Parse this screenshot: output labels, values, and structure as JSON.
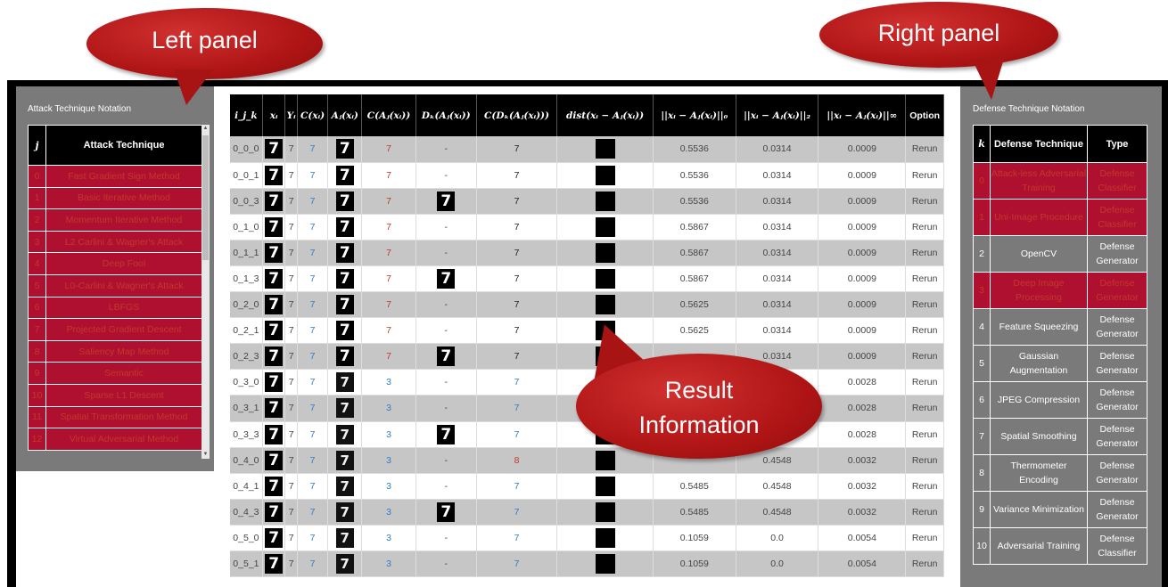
{
  "callouts": {
    "left": "Left panel",
    "right": "Right panel",
    "result_line1": "Result",
    "result_line2": "Information"
  },
  "left_panel": {
    "title": "Attack Technique Notation",
    "headers": [
      "j",
      "Attack Technique"
    ],
    "rows": [
      {
        "j": "0",
        "name": "Fast Gradient Sign Method"
      },
      {
        "j": "1",
        "name": "Basic Iterative Method"
      },
      {
        "j": "2",
        "name": "Momentum Iterative Method"
      },
      {
        "j": "3",
        "name": "L2 Carlini & Wagner's Attack"
      },
      {
        "j": "4",
        "name": "Deep Fool"
      },
      {
        "j": "5",
        "name": "L0-Carlini & Wagner's Attack"
      },
      {
        "j": "6",
        "name": "LBFGS"
      },
      {
        "j": "7",
        "name": "Projected Gradient Descent"
      },
      {
        "j": "8",
        "name": "Saliency Map Method"
      },
      {
        "j": "9",
        "name": "Semantic"
      },
      {
        "j": "10",
        "name": "Sparse L1 Descent"
      },
      {
        "j": "11",
        "name": "Spatial Transformation Method"
      },
      {
        "j": "12",
        "name": "Virtual Adversarial Method"
      }
    ]
  },
  "right_panel": {
    "title": "Defense Technique Notation",
    "headers": [
      "k",
      "Defense Technique",
      "Type"
    ],
    "rows": [
      {
        "k": "0",
        "name": "Attack-less Adversarial Training",
        "type": "Defense Classifier",
        "highlight": true
      },
      {
        "k": "1",
        "name": "Uni-Image Procedure",
        "type": "Defense Classifier",
        "highlight": true
      },
      {
        "k": "2",
        "name": "OpenCV",
        "type": "Defense Generator",
        "highlight": false
      },
      {
        "k": "3",
        "name": "Deep Image Processing",
        "type": "Defense Generator",
        "highlight": true
      },
      {
        "k": "4",
        "name": "Feature Squeezing",
        "type": "Defense Generator",
        "highlight": false
      },
      {
        "k": "5",
        "name": "Gaussian Augmentation",
        "type": "Defense Generator",
        "highlight": false
      },
      {
        "k": "6",
        "name": "JPEG Compression",
        "type": "Defense Generator",
        "highlight": false
      },
      {
        "k": "7",
        "name": "Spatial Smoothing",
        "type": "Defense Generator",
        "highlight": false
      },
      {
        "k": "8",
        "name": "Thermometer Encoding",
        "type": "Defense Generator",
        "highlight": false
      },
      {
        "k": "9",
        "name": "Variance Minimization",
        "type": "Defense Generator",
        "highlight": false
      },
      {
        "k": "10",
        "name": "Adversarial Training",
        "type": "Defense Classifier",
        "highlight": false
      }
    ]
  },
  "results": {
    "headers": [
      "i_j_k",
      "xᵢ",
      "Yᵢ",
      "C(xᵢ)",
      "Aⱼ(xᵢ)",
      "C(Aⱼ(xᵢ))",
      "Dₖ(Aⱼ(xᵢ))",
      "C(Dₖ(Aⱼ(xᵢ)))",
      "dist(xᵢ − Aⱼ(xᵢ))",
      "||xᵢ − Aⱼ(xᵢ)||₀",
      "||xᵢ − Aⱼ(xᵢ)||₂",
      "||xᵢ − Aⱼ(xᵢ)||∞",
      "Option"
    ],
    "digit_glyph": "7",
    "rerun_label": "Rerun",
    "rows": [
      {
        "id": "0_0_0",
        "y": "7",
        "c": "7",
        "ca": "7",
        "ca_color": "red",
        "d": "-",
        "cd": "7",
        "cd_color": "black",
        "l0": "0.5536",
        "l2": "0.0314",
        "linf": "0.0009",
        "adv_noisy": false
      },
      {
        "id": "0_0_1",
        "y": "7",
        "c": "7",
        "ca": "7",
        "ca_color": "red",
        "d": "-",
        "cd": "7",
        "cd_color": "black",
        "l0": "0.5536",
        "l2": "0.0314",
        "linf": "0.0009",
        "adv_noisy": false
      },
      {
        "id": "0_0_3",
        "y": "7",
        "c": "7",
        "ca": "7",
        "ca_color": "red",
        "d": "img",
        "cd": "7",
        "cd_color": "black",
        "l0": "0.5536",
        "l2": "0.0314",
        "linf": "0.0009",
        "adv_noisy": false
      },
      {
        "id": "0_1_0",
        "y": "7",
        "c": "7",
        "ca": "7",
        "ca_color": "red",
        "d": "-",
        "cd": "7",
        "cd_color": "black",
        "l0": "0.5867",
        "l2": "0.0314",
        "linf": "0.0009",
        "adv_noisy": false
      },
      {
        "id": "0_1_1",
        "y": "7",
        "c": "7",
        "ca": "7",
        "ca_color": "red",
        "d": "-",
        "cd": "7",
        "cd_color": "black",
        "l0": "0.5867",
        "l2": "0.0314",
        "linf": "0.0009",
        "adv_noisy": false
      },
      {
        "id": "0_1_3",
        "y": "7",
        "c": "7",
        "ca": "7",
        "ca_color": "red",
        "d": "img",
        "cd": "7",
        "cd_color": "black",
        "l0": "0.5867",
        "l2": "0.0314",
        "linf": "0.0009",
        "adv_noisy": false
      },
      {
        "id": "0_2_0",
        "y": "7",
        "c": "7",
        "ca": "7",
        "ca_color": "red",
        "d": "-",
        "cd": "7",
        "cd_color": "black",
        "l0": "0.5625",
        "l2": "0.0314",
        "linf": "0.0009",
        "adv_noisy": false
      },
      {
        "id": "0_2_1",
        "y": "7",
        "c": "7",
        "ca": "7",
        "ca_color": "red",
        "d": "-",
        "cd": "7",
        "cd_color": "black",
        "l0": "0.5625",
        "l2": "0.0314",
        "linf": "0.0009",
        "adv_noisy": false
      },
      {
        "id": "0_2_3",
        "y": "7",
        "c": "7",
        "ca": "7",
        "ca_color": "red",
        "d": "img",
        "cd": "7",
        "cd_color": "black",
        "l0": "",
        "l2": "0.0314",
        "linf": "0.0009",
        "adv_noisy": false
      },
      {
        "id": "0_3_0",
        "y": "7",
        "c": "7",
        "ca": "3",
        "ca_color": "blue",
        "d": "-",
        "cd": "7",
        "cd_color": "blue",
        "l0": "",
        "l2": "",
        "linf": "0.0028",
        "adv_noisy": true
      },
      {
        "id": "0_3_1",
        "y": "7",
        "c": "7",
        "ca": "3",
        "ca_color": "blue",
        "d": "-",
        "cd": "7",
        "cd_color": "blue",
        "l0": "",
        "l2": "",
        "linf": "0.0028",
        "adv_noisy": true
      },
      {
        "id": "0_3_3",
        "y": "7",
        "c": "7",
        "ca": "3",
        "ca_color": "blue",
        "d": "img",
        "cd": "7",
        "cd_color": "blue",
        "l0": "",
        "l2": "",
        "linf": "0.0028",
        "adv_noisy": true
      },
      {
        "id": "0_4_0",
        "y": "7",
        "c": "7",
        "ca": "3",
        "ca_color": "blue",
        "d": "-",
        "cd": "8",
        "cd_color": "red",
        "l0": "",
        "l2": "0.4548",
        "linf": "0.0032",
        "adv_noisy": true
      },
      {
        "id": "0_4_1",
        "y": "7",
        "c": "7",
        "ca": "3",
        "ca_color": "blue",
        "d": "-",
        "cd": "7",
        "cd_color": "blue",
        "l0": "0.5485",
        "l2": "0.4548",
        "linf": "0.0032",
        "adv_noisy": true
      },
      {
        "id": "0_4_3",
        "y": "7",
        "c": "7",
        "ca": "3",
        "ca_color": "blue",
        "d": "img",
        "cd": "7",
        "cd_color": "blue",
        "l0": "0.5485",
        "l2": "0.4548",
        "linf": "0.0032",
        "adv_noisy": true
      },
      {
        "id": "0_5_0",
        "y": "7",
        "c": "7",
        "ca": "3",
        "ca_color": "blue",
        "d": "-",
        "cd": "7",
        "cd_color": "blue",
        "l0": "0.1059",
        "l2": "0.0",
        "linf": "0.0054",
        "adv_noisy": true
      },
      {
        "id": "0_5_1",
        "y": "7",
        "c": "7",
        "ca": "3",
        "ca_color": "blue",
        "d": "-",
        "cd": "7",
        "cd_color": "blue",
        "l0": "0.1059",
        "l2": "0.0",
        "linf": "0.0054",
        "adv_noisy": true
      }
    ]
  }
}
